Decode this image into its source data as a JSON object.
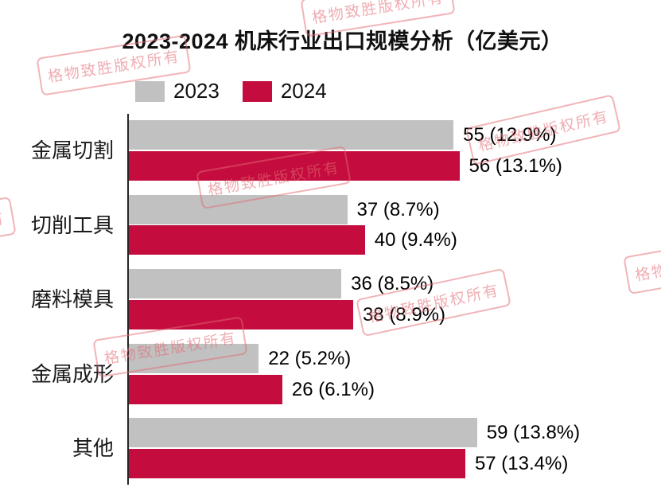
{
  "title": "2023-2024 机床行业出口规模分析（亿美元）",
  "watermark": {
    "text": "格物致胜版权所有"
  },
  "colors": {
    "series_2023": "#C1C1C1",
    "series_2024": "#C40D3E",
    "axis": "#262626",
    "watermark_pink": "#E46A72"
  },
  "chart_data": {
    "type": "bar",
    "orientation": "horizontal",
    "title": "2023-2024 机床行业出口规模分析（亿美元）",
    "xlabel": "",
    "ylabel": "",
    "xlim": [
      0,
      62
    ],
    "grid": false,
    "legend_position": "top-left",
    "categories": [
      "金属切割",
      "切削工具",
      "磨料模具",
      "金属成形",
      "其他"
    ],
    "series": [
      {
        "name": "2023",
        "color": "#C1C1C1",
        "values": [
          55,
          37,
          36,
          22,
          59
        ],
        "labels": [
          "55 (12.9%)",
          "37 (8.7%)",
          "36 (8.5%)",
          "22 (5.2%)",
          "59 (13.8%)"
        ]
      },
      {
        "name": "2024",
        "color": "#C40D3E",
        "values": [
          56,
          40,
          38,
          26,
          57
        ],
        "labels": [
          "56 (13.1%)",
          "40 (9.4%)",
          "38 (8.9%)",
          "26 (6.1%)",
          "57 (13.4%)"
        ]
      }
    ]
  }
}
